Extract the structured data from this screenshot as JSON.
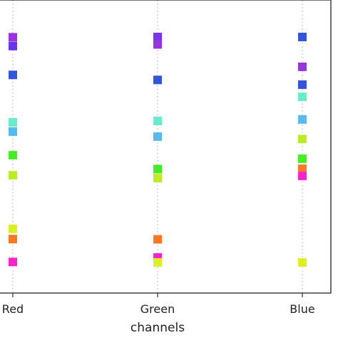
{
  "chart_data": {
    "type": "scatter",
    "title": "",
    "xlabel": "channels",
    "ylabel": "",
    "categories": [
      "Red",
      "Green",
      "Blue"
    ],
    "ylim": [
      0,
      100
    ],
    "grid": "vertical-dotted",
    "points": [
      {
        "category": "Red",
        "y": 97.5,
        "color": "#9933dd"
      },
      {
        "category": "Red",
        "y": 93.8,
        "color": "#6633ee"
      },
      {
        "category": "Red",
        "y": 81.7,
        "color": "#3355dd"
      },
      {
        "category": "Red",
        "y": 61.8,
        "color": "#66eecc"
      },
      {
        "category": "Red",
        "y": 57.9,
        "color": "#55bbee"
      },
      {
        "category": "Red",
        "y": 48.0,
        "color": "#44ee22"
      },
      {
        "category": "Red",
        "y": 39.6,
        "color": "#bbee22"
      },
      {
        "category": "Red",
        "y": 17.1,
        "color": "#ddee22"
      },
      {
        "category": "Red",
        "y": 12.8,
        "color": "#ff7722"
      },
      {
        "category": "Red",
        "y": 3.2,
        "color": "#ff22cc"
      },
      {
        "category": "Green",
        "y": 97.6,
        "color": "#7733ee"
      },
      {
        "category": "Green",
        "y": 94.5,
        "color": "#9933dd"
      },
      {
        "category": "Green",
        "y": 79.6,
        "color": "#3355dd"
      },
      {
        "category": "Green",
        "y": 62.4,
        "color": "#66eecc"
      },
      {
        "category": "Green",
        "y": 55.8,
        "color": "#55bbee"
      },
      {
        "category": "Green",
        "y": 42.2,
        "color": "#44ee22"
      },
      {
        "category": "Green",
        "y": 38.4,
        "color": "#bbee22"
      },
      {
        "category": "Green",
        "y": 12.7,
        "color": "#ff7722"
      },
      {
        "category": "Green",
        "y": 5.1,
        "color": "#ff22cc"
      },
      {
        "category": "Green",
        "y": 3.0,
        "color": "#ddee22"
      },
      {
        "category": "Blue",
        "y": 97.6,
        "color": "#3355dd"
      },
      {
        "category": "Blue",
        "y": 85.1,
        "color": "#9933dd"
      },
      {
        "category": "Blue",
        "y": 77.6,
        "color": "#3355dd"
      },
      {
        "category": "Blue",
        "y": 72.5,
        "color": "#66eecc"
      },
      {
        "category": "Blue",
        "y": 63.0,
        "color": "#55bbee"
      },
      {
        "category": "Blue",
        "y": 54.8,
        "color": "#bbee22"
      },
      {
        "category": "Blue",
        "y": 46.5,
        "color": "#44ee22"
      },
      {
        "category": "Blue",
        "y": 42.3,
        "color": "#ff7722"
      },
      {
        "category": "Blue",
        "y": 39.3,
        "color": "#ff22cc"
      },
      {
        "category": "Blue",
        "y": 3.0,
        "color": "#ddee22"
      }
    ]
  }
}
